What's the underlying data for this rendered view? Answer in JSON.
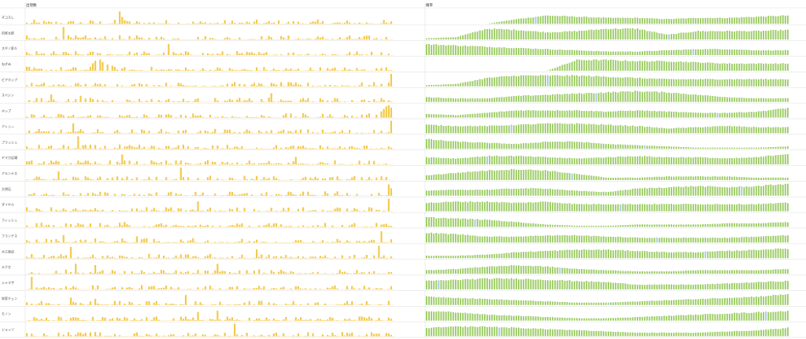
{
  "page": {
    "title": "",
    "panels": [
      {
        "header": "出現数",
        "chart_index": 0
      },
      {
        "header": "確率",
        "chart_index": 1
      }
    ]
  },
  "rows": [
    "ネコスし",
    "自家太郎",
    "スギノ家々",
    "ねずみ",
    "ピアホップ",
    "スペシン",
    "ホップ",
    "アトン—",
    "プラッシュ",
    "ヤマガ広場",
    "アルンテス",
    "大明石",
    "ダイヤル",
    "フィッシュ",
    "フランチス",
    "大江商店",
    "エクセ",
    "シャマザ",
    "栄家チェン",
    "モノン",
    "ジョッゾ"
  ],
  "colors": {
    "count_bar": "#f2c94c",
    "prob_bar": "#9ccc65",
    "prob_highlight": "#a8c8e8",
    "divider": "#dddddd",
    "baseline": "#f2c94c"
  },
  "chart_data": [
    {
      "type": "bar",
      "title": "出現数",
      "facet_rows": [
        "ネコスし",
        "自家太郎",
        "スギノ家々",
        "ねずみ",
        "ピアホップ",
        "スペシン",
        "ホップ",
        "アトン—",
        "プラッシュ",
        "ヤマガ広場",
        "アルンテス",
        "大明石",
        "ダイヤル",
        "フィッシュ",
        "フランチス",
        "大江商店",
        "エクセ",
        "シャマザ",
        "栄家チェン",
        "モノン",
        "ジョッゾ"
      ],
      "x": {
        "count": 150,
        "label": ""
      },
      "note": "Each facet row is a small bar series of ~150 bars; mostly low values with occasional tall spikes.",
      "spikes": [
        {
          "row": 0,
          "at": [
            38,
            39,
            40
          ],
          "value": [
            1.0,
            0.55,
            0.3
          ]
        },
        {
          "row": 1,
          "at": [
            15
          ],
          "value": [
            1.0
          ]
        },
        {
          "row": 2,
          "at": [
            58
          ],
          "value": [
            0.9
          ]
        },
        {
          "row": 3,
          "at": [
            27,
            28,
            30,
            31,
            33,
            35
          ],
          "value": [
            0.6,
            0.8,
            0.9,
            0.7,
            0.5,
            0.4
          ]
        },
        {
          "row": 4,
          "at": [
            149
          ],
          "value": [
            1.0
          ]
        },
        {
          "row": 5,
          "at": [
            10,
            22,
            100
          ],
          "value": [
            0.6,
            0.5,
            0.7
          ]
        },
        {
          "row": 6,
          "at": [
            145,
            146,
            147,
            148,
            149
          ],
          "value": [
            0.5,
            0.7,
            0.9,
            1.0,
            0.8
          ]
        },
        {
          "row": 7,
          "at": [
            19,
            149
          ],
          "value": [
            0.8,
            1.0
          ]
        },
        {
          "row": 8,
          "at": [
            21
          ],
          "value": [
            1.0
          ]
        },
        {
          "row": 9,
          "at": [
            39,
            110
          ],
          "value": [
            0.8,
            0.6
          ]
        },
        {
          "row": 10,
          "at": [
            13,
            63
          ],
          "value": [
            0.7,
            1.0
          ]
        },
        {
          "row": 11,
          "at": [
            148,
            149
          ],
          "value": [
            0.9,
            0.6
          ]
        },
        {
          "row": 12,
          "at": [
            70,
            148
          ],
          "value": [
            0.8,
            1.0
          ]
        },
        {
          "row": 13,
          "at": [
            4,
            40
          ],
          "value": [
            0.3,
            0.4
          ]
        },
        {
          "row": 14,
          "at": [
            15,
            45,
            145
          ],
          "value": [
            0.6,
            0.5,
            0.9
          ]
        },
        {
          "row": 15,
          "at": [
            18,
            94,
            144
          ],
          "value": [
            0.9,
            0.7,
            1.0
          ]
        },
        {
          "row": 16,
          "at": [
            20,
            28,
            78
          ],
          "value": [
            0.8,
            0.7,
            0.8
          ]
        },
        {
          "row": 17,
          "at": [
            2
          ],
          "value": [
            1.0
          ]
        },
        {
          "row": 18,
          "at": [
            18,
            28,
            65
          ],
          "value": [
            0.6,
            0.5,
            0.8
          ]
        },
        {
          "row": 19,
          "at": [
            70,
            78
          ],
          "value": [
            0.7,
            0.8
          ]
        },
        {
          "row": 20,
          "at": [
            85
          ],
          "value": [
            1.0
          ]
        }
      ],
      "grid": false
    },
    {
      "type": "bar",
      "title": "確率",
      "facet_rows": [
        "ネコスし",
        "自家太郎",
        "スギノ家々",
        "ねずみ",
        "ピアホップ",
        "スペシン",
        "ホップ",
        "アトン—",
        "プラッシュ",
        "ヤマガ広場",
        "アルンテス",
        "大明石",
        "ダイヤル",
        "フィッシュ",
        "フランチス",
        "大江商店",
        "エクセ",
        "シャマザ",
        "栄家チェン",
        "モノン",
        "ジョッゾ"
      ],
      "x": {
        "count": 150,
        "label": ""
      },
      "note": "Dense green bars forming smooth level profiles per row; occasional blue highlighted bars.",
      "profiles": [
        [
          0.0,
          0.0,
          0.0,
          0.4,
          0.7,
          0.6,
          0.5,
          0.5,
          0.4,
          0.5,
          0.5,
          0.6,
          0.7
        ],
        [
          0.1,
          0.2,
          0.9,
          0.8,
          0.6,
          0.7,
          0.9,
          0.9,
          0.4,
          0.7,
          0.7,
          0.7,
          0.8
        ],
        [
          0.9,
          0.8,
          0.7,
          0.6,
          0.5,
          0.4,
          0.3,
          0.3,
          0.4,
          0.5,
          0.5,
          0.4,
          0.4
        ],
        [
          0.0,
          0.0,
          0.0,
          0.0,
          0.0,
          0.9,
          0.9,
          0.8,
          0.8,
          0.7,
          0.6,
          0.6,
          0.6
        ],
        [
          0.1,
          0.2,
          0.7,
          0.9,
          0.9,
          0.9,
          0.8,
          0.7,
          0.6,
          0.6,
          0.6,
          0.6,
          0.6
        ],
        [
          0.4,
          0.3,
          0.3,
          0.5,
          0.6,
          0.7,
          0.8,
          0.9,
          0.8,
          0.6,
          0.4,
          0.3,
          0.3
        ],
        [
          0.3,
          0.2,
          0.4,
          0.6,
          0.6,
          0.6,
          0.5,
          0.6,
          0.5,
          0.4,
          0.4,
          0.5,
          0.8
        ],
        [
          0.7,
          0.6,
          0.6,
          0.7,
          0.8,
          0.8,
          0.7,
          0.6,
          0.4,
          0.5,
          0.6,
          0.5,
          0.5
        ],
        [
          0.8,
          0.6,
          0.5,
          0.4,
          0.6,
          0.6,
          0.4,
          0.3,
          0.2,
          0.1,
          0.1,
          0.1,
          0.2
        ],
        [
          0.6,
          0.5,
          0.7,
          0.7,
          0.6,
          0.5,
          0.6,
          0.7,
          0.6,
          0.6,
          0.5,
          0.6,
          0.9
        ],
        [
          0.4,
          0.6,
          0.8,
          0.9,
          0.8,
          0.5,
          0.2,
          0.2,
          0.3,
          0.3,
          0.3,
          0.2,
          0.2
        ],
        [
          0.4,
          0.5,
          0.5,
          0.6,
          0.6,
          0.4,
          0.3,
          0.6,
          0.7,
          0.8,
          0.7,
          0.8,
          1.0
        ],
        [
          0.7,
          0.8,
          0.8,
          0.7,
          0.8,
          0.6,
          0.6,
          0.6,
          0.6,
          0.6,
          0.6,
          0.6,
          0.7
        ],
        [
          0.8,
          0.7,
          0.6,
          0.4,
          0.2,
          0.1,
          0.1,
          0.2,
          0.2,
          0.2,
          0.3,
          0.3,
          0.4
        ],
        [
          0.8,
          0.7,
          0.5,
          0.5,
          0.6,
          0.6,
          0.5,
          0.4,
          0.4,
          0.4,
          0.4,
          0.5,
          0.6
        ],
        [
          0.2,
          0.2,
          0.3,
          0.5,
          0.6,
          0.7,
          0.7,
          0.6,
          0.5,
          0.5,
          0.6,
          0.7,
          0.8
        ],
        [
          0.3,
          0.4,
          0.6,
          0.7,
          0.6,
          0.4,
          0.3,
          0.2,
          0.2,
          0.3,
          0.3,
          0.3,
          0.4
        ],
        [
          0.7,
          0.8,
          0.9,
          0.9,
          0.8,
          0.7,
          0.6,
          0.4,
          0.4,
          0.4,
          0.5,
          0.6,
          0.7
        ],
        [
          0.7,
          0.6,
          0.5,
          0.4,
          0.3,
          0.2,
          0.2,
          0.3,
          0.4,
          0.5,
          0.6,
          0.7,
          0.9
        ],
        [
          0.8,
          0.7,
          0.5,
          0.4,
          0.3,
          0.2,
          0.2,
          0.3,
          0.4,
          0.5,
          0.6,
          0.7,
          0.8
        ],
        [
          0.7,
          0.8,
          0.8,
          0.7,
          0.6,
          0.5,
          0.4,
          0.3,
          0.3,
          0.3,
          0.4,
          0.5,
          0.7
        ]
      ],
      "highlights": [
        [
          0,
          45
        ],
        [
          1,
          100
        ],
        [
          2,
          110
        ],
        [
          3,
          40
        ],
        [
          4,
          50
        ],
        [
          5,
          70
        ],
        [
          6,
          120
        ],
        [
          7,
          35
        ],
        [
          8,
          90
        ],
        [
          9,
          25
        ],
        [
          10,
          60
        ],
        [
          11,
          130
        ],
        [
          12,
          80
        ],
        [
          13,
          20
        ],
        [
          14,
          95
        ],
        [
          15,
          115
        ],
        [
          16,
          55
        ],
        [
          17,
          5
        ],
        [
          18,
          75
        ],
        [
          19,
          140
        ],
        [
          20,
          30
        ]
      ],
      "grid": false
    }
  ]
}
